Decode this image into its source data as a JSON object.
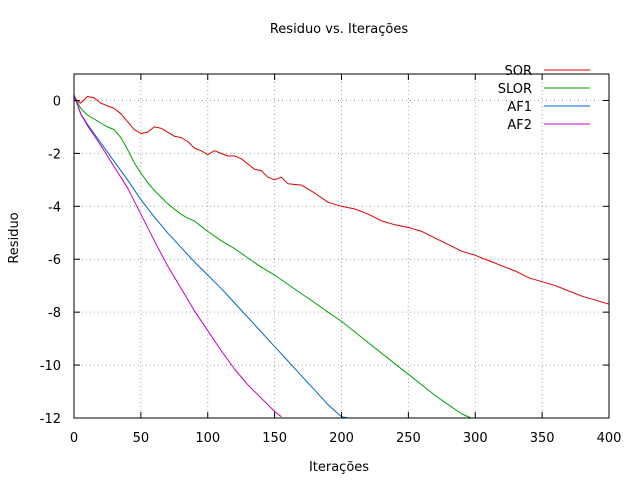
{
  "chart_data": {
    "type": "line",
    "title": "Residuo vs. Iterações",
    "xlabel": "Iterações",
    "ylabel": "Residuo",
    "xlim": [
      0,
      400
    ],
    "ylim": [
      -12,
      1
    ],
    "xticks": [
      0,
      50,
      100,
      150,
      200,
      250,
      300,
      350,
      400
    ],
    "yticks": [
      0,
      -2,
      -4,
      -6,
      -8,
      -10,
      -12
    ],
    "grid": true,
    "legend_position": "top-right",
    "series": [
      {
        "name": "SOR",
        "color": "#e00000",
        "x": [
          0,
          5,
          10,
          15,
          20,
          25,
          30,
          35,
          40,
          45,
          50,
          55,
          60,
          65,
          70,
          75,
          80,
          85,
          90,
          95,
          100,
          105,
          110,
          115,
          120,
          125,
          130,
          135,
          140,
          145,
          150,
          155,
          160,
          170,
          180,
          190,
          200,
          210,
          220,
          230,
          240,
          250,
          260,
          270,
          280,
          290,
          300,
          310,
          320,
          330,
          340,
          350,
          360,
          370,
          380,
          390,
          400
        ],
        "y": [
          0.1,
          -0.1,
          0.15,
          0.1,
          -0.1,
          -0.2,
          -0.3,
          -0.5,
          -0.8,
          -1.1,
          -1.25,
          -1.2,
          -1.0,
          -1.05,
          -1.2,
          -1.35,
          -1.4,
          -1.55,
          -1.8,
          -1.9,
          -2.05,
          -1.9,
          -2.0,
          -2.1,
          -2.1,
          -2.2,
          -2.4,
          -2.6,
          -2.65,
          -2.9,
          -3.0,
          -2.9,
          -3.15,
          -3.2,
          -3.5,
          -3.85,
          -4.0,
          -4.1,
          -4.3,
          -4.55,
          -4.7,
          -4.8,
          -4.95,
          -5.2,
          -5.45,
          -5.7,
          -5.85,
          -6.05,
          -6.25,
          -6.45,
          -6.7,
          -6.85,
          -7.0,
          -7.2,
          -7.4,
          -7.55,
          -7.7
        ]
      },
      {
        "name": "SLOR",
        "color": "#00a000",
        "x": [
          0,
          5,
          10,
          15,
          20,
          25,
          30,
          35,
          40,
          45,
          50,
          55,
          60,
          65,
          70,
          75,
          80,
          85,
          90,
          95,
          100,
          110,
          120,
          130,
          140,
          150,
          160,
          170,
          180,
          190,
          200,
          210,
          220,
          230,
          240,
          250,
          260,
          270,
          280,
          290,
          297
        ],
        "y": [
          0.2,
          -0.3,
          -0.55,
          -0.7,
          -0.85,
          -1.0,
          -1.1,
          -1.4,
          -1.85,
          -2.35,
          -2.75,
          -3.1,
          -3.4,
          -3.65,
          -3.9,
          -4.1,
          -4.3,
          -4.45,
          -4.55,
          -4.75,
          -4.95,
          -5.3,
          -5.6,
          -5.95,
          -6.3,
          -6.6,
          -6.95,
          -7.3,
          -7.65,
          -8.0,
          -8.35,
          -8.75,
          -9.15,
          -9.55,
          -9.95,
          -10.35,
          -10.75,
          -11.15,
          -11.5,
          -11.85,
          -12.0
        ]
      },
      {
        "name": "AF1",
        "color": "#0066cc",
        "x": [
          0,
          5,
          10,
          20,
          30,
          40,
          50,
          60,
          70,
          80,
          90,
          100,
          110,
          120,
          130,
          140,
          150,
          160,
          170,
          180,
          190,
          200,
          205
        ],
        "y": [
          0.2,
          -0.5,
          -0.9,
          -1.6,
          -2.3,
          -3.0,
          -3.75,
          -4.4,
          -5.0,
          -5.55,
          -6.1,
          -6.6,
          -7.1,
          -7.65,
          -8.2,
          -8.75,
          -9.3,
          -9.85,
          -10.4,
          -10.95,
          -11.5,
          -11.95,
          -12.0
        ]
      },
      {
        "name": "AF2",
        "color": "#c000c0",
        "x": [
          0,
          5,
          10,
          20,
          30,
          40,
          50,
          60,
          70,
          80,
          90,
          100,
          110,
          120,
          130,
          140,
          150,
          155
        ],
        "y": [
          0.2,
          -0.5,
          -0.95,
          -1.7,
          -2.5,
          -3.3,
          -4.3,
          -5.3,
          -6.25,
          -7.1,
          -7.95,
          -8.7,
          -9.45,
          -10.15,
          -10.75,
          -11.25,
          -11.75,
          -11.95
        ]
      }
    ]
  }
}
